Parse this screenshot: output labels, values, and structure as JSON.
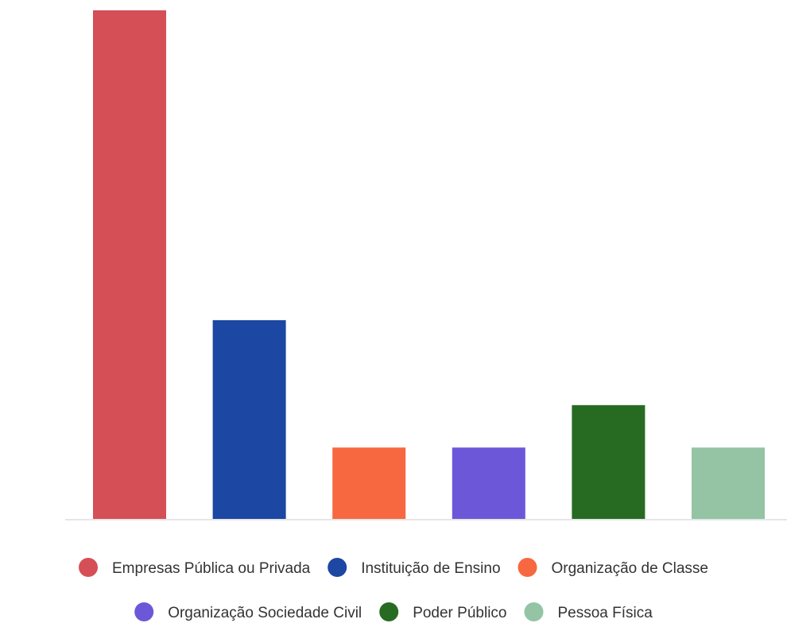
{
  "chart_data": {
    "type": "bar",
    "title": "",
    "xlabel": "",
    "ylabel": "",
    "categories": [
      "Empresas Pública ou Privada",
      "Instituição de Ensino",
      "Organização de Classe",
      "Organização Sociedade Civil",
      "Poder Público",
      "Pessoa Física"
    ],
    "values": [
      12,
      4.7,
      1.7,
      1.7,
      2.7,
      1.7
    ],
    "ylim": [
      0,
      12
    ],
    "colors": [
      "#d54f57",
      "#1c47a2",
      "#f76841",
      "#6d57d9",
      "#276b23",
      "#94c4a4"
    ],
    "grid": false,
    "legend_position": "bottom",
    "legend": [
      {
        "label": "Empresas Pública ou Privada",
        "color": "#d54f57"
      },
      {
        "label": "Instituição de Ensino",
        "color": "#1c47a2"
      },
      {
        "label": "Organização de Classe",
        "color": "#f76841"
      },
      {
        "label": "Organização Sociedade Civil",
        "color": "#6d57d9"
      },
      {
        "label": "Poder Público",
        "color": "#276b23"
      },
      {
        "label": "Pessoa Física",
        "color": "#94c4a4"
      }
    ]
  }
}
